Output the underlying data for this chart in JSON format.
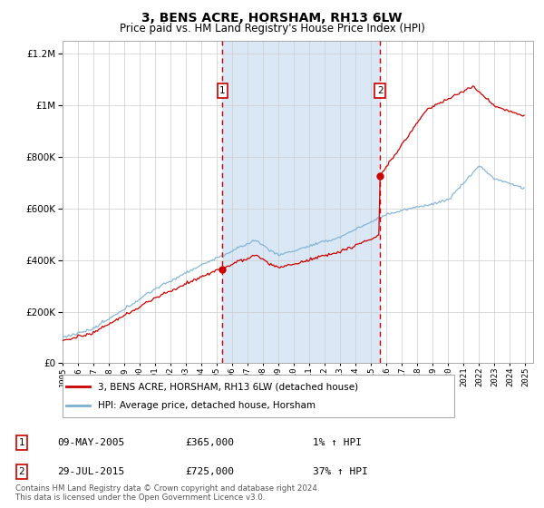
{
  "title": "3, BENS ACRE, HORSHAM, RH13 6LW",
  "subtitle": "Price paid vs. HM Land Registry's House Price Index (HPI)",
  "legend_line1": "3, BENS ACRE, HORSHAM, RH13 6LW (detached house)",
  "legend_line2": "HPI: Average price, detached house, Horsham",
  "annotation1_date": "09-MAY-2005",
  "annotation1_price": 365000,
  "annotation1_hpi": "1% ↑ HPI",
  "annotation1_year": 2005.37,
  "annotation2_date": "29-JUL-2015",
  "annotation2_price": 725000,
  "annotation2_hpi": "37% ↑ HPI",
  "annotation2_year": 2015.58,
  "footer": "Contains HM Land Registry data © Crown copyright and database right 2024.\nThis data is licensed under the Open Government Licence v3.0.",
  "hpi_color": "#7bafd4",
  "price_color": "#cc0000",
  "shading_color": "#dae8f5",
  "annotation_box_color": "#cc0000",
  "background_color": "#ffffff",
  "ylim_min": 0,
  "ylim_max": 1250000,
  "xmin": 1995.0,
  "xmax": 2025.5
}
